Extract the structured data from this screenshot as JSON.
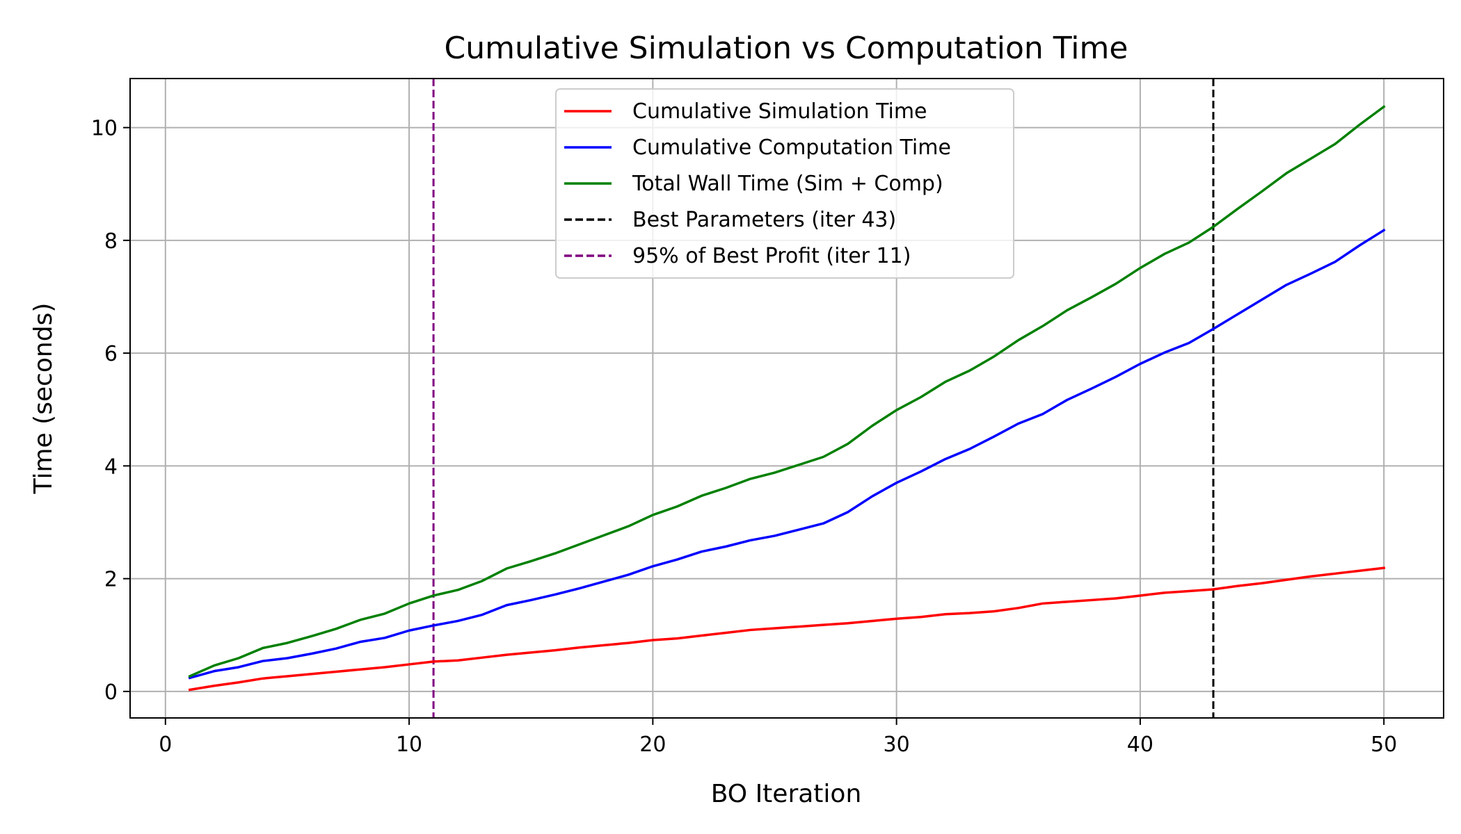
{
  "chart_data": {
    "type": "line",
    "title": "Cumulative Simulation vs Computation Time",
    "xlabel": "BO Iteration",
    "ylabel": "Time (seconds)",
    "xlim": [
      -1.45,
      52.45
    ],
    "ylim": [
      -0.47,
      10.87
    ],
    "xticks": [
      0,
      10,
      20,
      30,
      40,
      50
    ],
    "yticks": [
      0,
      2,
      4,
      6,
      8,
      10
    ],
    "grid": true,
    "legend_position": "upper-center",
    "x": [
      1,
      2,
      3,
      4,
      5,
      6,
      7,
      8,
      9,
      10,
      11,
      12,
      13,
      14,
      15,
      16,
      17,
      18,
      19,
      20,
      21,
      22,
      23,
      24,
      25,
      26,
      27,
      28,
      29,
      30,
      31,
      32,
      33,
      34,
      35,
      36,
      37,
      38,
      39,
      40,
      41,
      42,
      43,
      44,
      45,
      46,
      47,
      48,
      49,
      50
    ],
    "series": [
      {
        "name": "Cumulative Simulation Time",
        "color": "#ff0000",
        "style": "solid",
        "values": [
          0.03,
          0.1,
          0.16,
          0.23,
          0.27,
          0.31,
          0.35,
          0.39,
          0.43,
          0.48,
          0.53,
          0.55,
          0.6,
          0.65,
          0.69,
          0.73,
          0.78,
          0.82,
          0.86,
          0.91,
          0.94,
          0.99,
          1.04,
          1.09,
          1.12,
          1.15,
          1.18,
          1.21,
          1.25,
          1.29,
          1.32,
          1.37,
          1.39,
          1.42,
          1.48,
          1.56,
          1.59,
          1.62,
          1.65,
          1.7,
          1.75,
          1.78,
          1.81,
          1.87,
          1.92,
          1.98,
          2.04,
          2.09,
          2.14,
          2.19
        ]
      },
      {
        "name": "Cumulative Computation Time",
        "color": "#0000ff",
        "style": "solid",
        "values": [
          0.24,
          0.36,
          0.43,
          0.54,
          0.59,
          0.67,
          0.76,
          0.88,
          0.95,
          1.08,
          1.17,
          1.25,
          1.36,
          1.53,
          1.62,
          1.72,
          1.83,
          1.95,
          2.07,
          2.22,
          2.34,
          2.48,
          2.57,
          2.68,
          2.76,
          2.87,
          2.98,
          3.18,
          3.46,
          3.7,
          3.9,
          4.12,
          4.3,
          4.52,
          4.75,
          4.92,
          5.17,
          5.37,
          5.58,
          5.81,
          6.01,
          6.18,
          6.43,
          6.69,
          6.95,
          7.21,
          7.41,
          7.62,
          7.91,
          8.18
        ]
      },
      {
        "name": "Total Wall Time (Sim + Comp)",
        "color": "#008000",
        "style": "solid",
        "values": [
          0.27,
          0.46,
          0.59,
          0.77,
          0.86,
          0.98,
          1.11,
          1.27,
          1.38,
          1.56,
          1.7,
          1.8,
          1.96,
          2.18,
          2.31,
          2.45,
          2.61,
          2.77,
          2.93,
          3.13,
          3.28,
          3.47,
          3.61,
          3.77,
          3.88,
          4.02,
          4.16,
          4.39,
          4.71,
          4.99,
          5.22,
          5.49,
          5.69,
          5.94,
          6.23,
          6.48,
          6.76,
          6.99,
          7.23,
          7.51,
          7.76,
          7.96,
          8.24,
          8.56,
          8.87,
          9.19,
          9.45,
          9.71,
          10.05,
          10.37
        ]
      }
    ],
    "vlines": [
      {
        "name": "Best Parameters (iter 43)",
        "x": 43,
        "color": "#000000",
        "style": "dashed"
      },
      {
        "name": "95% of Best Profit (iter 11)",
        "x": 11,
        "color": "#800080",
        "style": "dashed"
      }
    ]
  }
}
